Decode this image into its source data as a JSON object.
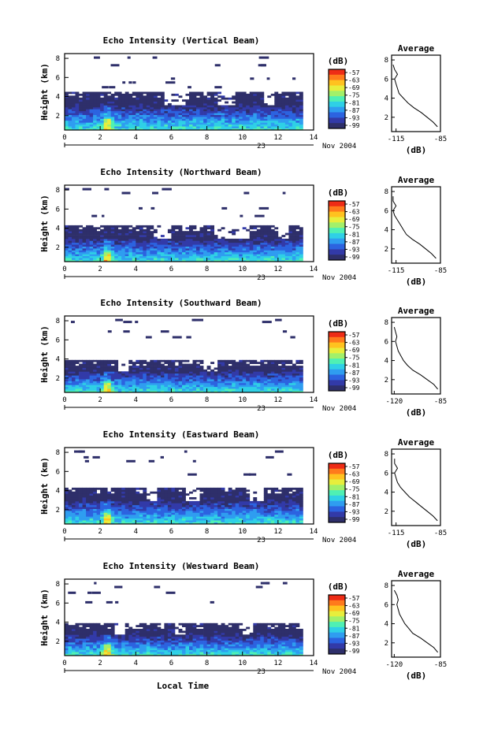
{
  "figure": {
    "colorbar_unit": "(dB)",
    "colorbar_ticks": [
      "-57",
      "-63",
      "-69",
      "-75",
      "-81",
      "-87",
      "-93",
      "-99"
    ],
    "date_day": "23",
    "date_month_year": "Nov 2004",
    "x_axis_label": "Local Time"
  },
  "palette": [
    "#2e2f6a",
    "#323aa8",
    "#2c63e0",
    "#2f9df0",
    "#2fd0e6",
    "#4ff0b4",
    "#a2f06a",
    "#e8ee3c",
    "#ffc21f",
    "#ff7a1c",
    "#ee2c16"
  ],
  "chart_data": [
    {
      "type": "heatmap",
      "title": "Echo Intensity (Vertical Beam)",
      "ylabel": "Height (km)",
      "x_ticks": [
        "0",
        "2",
        "4",
        "6",
        "8",
        "10",
        "12",
        "14"
      ],
      "y_ticks": [
        "2",
        "4",
        "6",
        "8"
      ],
      "xlim": [
        0,
        14
      ],
      "ylim": [
        0.5,
        8.5
      ],
      "zlim": [
        -99,
        -57
      ],
      "layer_top_km": 4.5,
      "dense_top_km": 3.0,
      "data_end_hour": 13.2,
      "gap_hours": [
        [
          5.5,
          7.0
        ],
        [
          8.5,
          9.5
        ],
        [
          11.0,
          11.6
        ]
      ],
      "speckle_heights_km": [
        8.0,
        7.2,
        5.8,
        5.4,
        4.9
      ],
      "profile": {
        "title": "Average",
        "xlabel": "(dB)",
        "x_ticks": [
          "-115",
          "-85"
        ],
        "y_ticks": [
          "2",
          "4",
          "6",
          "8"
        ],
        "xlim": [
          -118,
          -85
        ],
        "ylim": [
          0.5,
          8.5
        ],
        "height_km": [
          1.0,
          1.5,
          2.0,
          2.5,
          3.0,
          3.5,
          4.0,
          4.5,
          5.0,
          5.5,
          6.0,
          6.5,
          7.0,
          7.5
        ],
        "value_db": [
          -87,
          -90,
          -94,
          -98,
          -103,
          -107,
          -110,
          -113,
          -114,
          -115,
          -116,
          -114,
          -116,
          -117
        ]
      }
    },
    {
      "type": "heatmap",
      "title": "Echo Intensity (Northward Beam)",
      "ylabel": "Height (km)",
      "x_ticks": [
        "0",
        "2",
        "4",
        "6",
        "8",
        "10",
        "12",
        "14"
      ],
      "y_ticks": [
        "2",
        "4",
        "6",
        "8"
      ],
      "xlim": [
        0,
        14
      ],
      "ylim": [
        0.5,
        8.5
      ],
      "zlim": [
        -99,
        -57
      ],
      "layer_top_km": 4.2,
      "dense_top_km": 2.8,
      "data_end_hour": 13.2,
      "gap_hours": [
        [
          5.0,
          6.0
        ],
        [
          8.3,
          10.2
        ],
        [
          11.8,
          12.4
        ]
      ],
      "speckle_heights_km": [
        8.0,
        7.6,
        6.0,
        5.2
      ],
      "profile": {
        "title": "Average",
        "xlabel": "(dB)",
        "x_ticks": [
          "-115",
          "-85"
        ],
        "y_ticks": [
          "2",
          "4",
          "6",
          "8"
        ],
        "xlim": [
          -118,
          -85
        ],
        "ylim": [
          0.5,
          8.5
        ],
        "height_km": [
          1.0,
          1.5,
          2.0,
          2.5,
          3.0,
          3.5,
          4.0,
          4.5,
          5.0,
          5.5,
          6.0,
          6.5,
          7.0,
          7.5
        ],
        "value_db": [
          -88,
          -91,
          -95,
          -99,
          -104,
          -108,
          -110,
          -112,
          -114,
          -116,
          -117,
          -115,
          -117,
          -117
        ]
      }
    },
    {
      "type": "heatmap",
      "title": "Echo Intensity (Southward Beam)",
      "ylabel": "Height (km)",
      "x_ticks": [
        "0",
        "2",
        "4",
        "6",
        "8",
        "10",
        "12",
        "14"
      ],
      "y_ticks": [
        "2",
        "4",
        "6",
        "8"
      ],
      "xlim": [
        0,
        14
      ],
      "ylim": [
        0.5,
        8.5
      ],
      "zlim": [
        -99,
        -57
      ],
      "layer_top_km": 3.8,
      "dense_top_km": 2.6,
      "data_end_hour": 13.2,
      "gap_hours": [
        [
          3.0,
          3.6
        ],
        [
          7.8,
          8.6
        ]
      ],
      "speckle_heights_km": [
        8.0,
        7.8,
        6.8,
        6.2
      ],
      "profile": {
        "title": "Average",
        "xlabel": "(dB)",
        "x_ticks": [
          "-120",
          "-85"
        ],
        "y_ticks": [
          "2",
          "4",
          "6",
          "8"
        ],
        "xlim": [
          -122,
          -85
        ],
        "ylim": [
          0.5,
          8.5
        ],
        "height_km": [
          1.0,
          1.5,
          2.0,
          2.5,
          3.0,
          3.5,
          4.0,
          4.5,
          5.0,
          5.5,
          6.0,
          6.5,
          7.0,
          7.5
        ],
        "value_db": [
          -87,
          -90,
          -95,
          -100,
          -106,
          -110,
          -113,
          -115,
          -117,
          -118,
          -119,
          -118,
          -119,
          -120
        ]
      }
    },
    {
      "type": "heatmap",
      "title": "Echo Intensity (Eastward Beam)",
      "ylabel": "Height (km)",
      "x_ticks": [
        "0",
        "2",
        "4",
        "6",
        "8",
        "10",
        "12",
        "14"
      ],
      "y_ticks": [
        "2",
        "4",
        "6",
        "8"
      ],
      "xlim": [
        0,
        14
      ],
      "ylim": [
        0.5,
        8.5
      ],
      "zlim": [
        -99,
        -57
      ],
      "layer_top_km": 4.3,
      "dense_top_km": 2.8,
      "data_end_hour": 13.2,
      "gap_hours": [
        [
          4.5,
          5.2
        ],
        [
          6.8,
          7.6
        ],
        [
          10.3,
          11.0
        ]
      ],
      "speckle_heights_km": [
        8.0,
        7.4,
        7.0,
        5.6
      ],
      "profile": {
        "title": "Average",
        "xlabel": "(dB)",
        "x_ticks": [
          "-115",
          "-85"
        ],
        "y_ticks": [
          "2",
          "4",
          "6",
          "8"
        ],
        "xlim": [
          -118,
          -85
        ],
        "ylim": [
          0.5,
          8.5
        ],
        "height_km": [
          1.0,
          1.5,
          2.0,
          2.5,
          3.0,
          3.5,
          4.0,
          4.5,
          5.0,
          5.5,
          6.0,
          6.5,
          7.0,
          7.5
        ],
        "value_db": [
          -87,
          -90,
          -94,
          -98,
          -102,
          -106,
          -109,
          -112,
          -114,
          -115,
          -116,
          -114,
          -116,
          -116
        ]
      }
    },
    {
      "type": "heatmap",
      "title": "Echo Intensity (Westward Beam)",
      "ylabel": "Height (km)",
      "x_ticks": [
        "0",
        "2",
        "4",
        "6",
        "8",
        "10",
        "12",
        "14"
      ],
      "y_ticks": [
        "2",
        "4",
        "6",
        "8"
      ],
      "xlim": [
        0,
        14
      ],
      "ylim": [
        0.5,
        8.5
      ],
      "zlim": [
        -99,
        -57
      ],
      "layer_top_km": 3.8,
      "dense_top_km": 2.6,
      "data_end_hour": 13.2,
      "gap_hours": [
        [
          2.8,
          3.3
        ],
        [
          6.1,
          6.8
        ],
        [
          9.9,
          10.5
        ]
      ],
      "speckle_heights_km": [
        8.0,
        7.6,
        7.0,
        6.0
      ],
      "profile": {
        "title": "Average",
        "xlabel": "(dB)",
        "x_ticks": [
          "-120",
          "-85"
        ],
        "y_ticks": [
          "2",
          "4",
          "6",
          "8"
        ],
        "xlim": [
          -122,
          -85
        ],
        "ylim": [
          0.5,
          8.5
        ],
        "height_km": [
          1.0,
          1.5,
          2.0,
          2.5,
          3.0,
          3.5,
          4.0,
          4.5,
          5.0,
          5.5,
          6.0,
          6.5,
          7.0,
          7.5
        ],
        "value_db": [
          -87,
          -90,
          -95,
          -100,
          -106,
          -109,
          -112,
          -114,
          -116,
          -117,
          -118,
          -117,
          -118,
          -120
        ]
      }
    }
  ]
}
